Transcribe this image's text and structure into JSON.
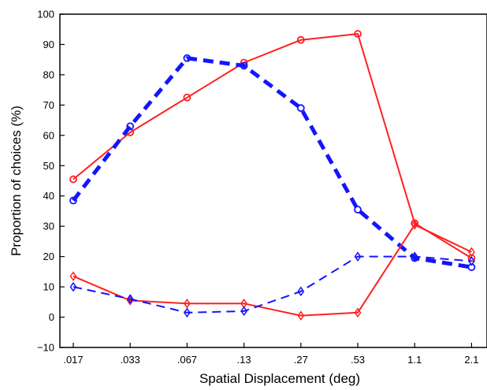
{
  "chart_data": {
    "type": "line",
    "title": "",
    "xlabel": "Spatial Displacement (deg)",
    "ylabel": "Proportion of choices (%)",
    "categories": [
      ".017",
      ".033",
      ".067",
      ".13",
      ".27",
      ".53",
      "1.1",
      "2.1"
    ],
    "ylim": [
      -10,
      100
    ],
    "yticks": [
      -10,
      0,
      10,
      20,
      30,
      40,
      50,
      60,
      70,
      80,
      90,
      100
    ],
    "grid": false,
    "series": [
      {
        "color": "#ff2020",
        "line_style": "solid",
        "marker": "circle",
        "values": [
          45.5,
          61,
          72.5,
          84,
          91.5,
          93.5,
          31,
          19.5
        ]
      },
      {
        "color": "#1414ff",
        "line_style": "thick-dashed",
        "marker": "circle",
        "values": [
          38.5,
          63,
          85.5,
          83,
          69,
          35.5,
          19.5,
          16.5
        ]
      },
      {
        "color": "#ff2020",
        "line_style": "solid",
        "marker": "diamond",
        "values": [
          13.5,
          5.5,
          4.5,
          4.5,
          0.5,
          1.5,
          30.5,
          21.5
        ]
      },
      {
        "color": "#1414ff",
        "line_style": "dashed",
        "marker": "diamond",
        "values": [
          10,
          6,
          1.5,
          2,
          8.5,
          20,
          20,
          18.5
        ]
      }
    ]
  }
}
